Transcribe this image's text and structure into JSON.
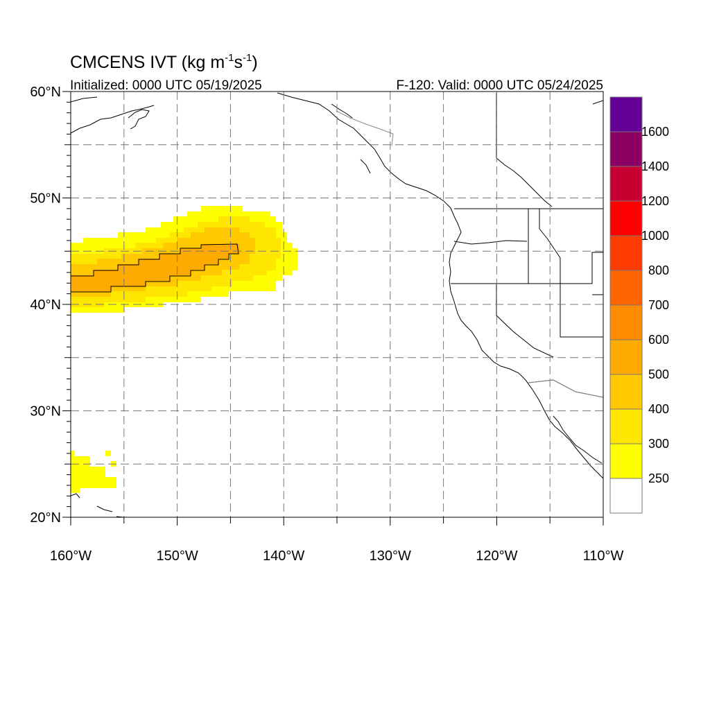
{
  "title": {
    "prefix": "CMCENS IVT (kg m",
    "exp1": "-1",
    "mid": "s",
    "exp2": "-1",
    "suffix": ")"
  },
  "subtitle_left": "Initialized: 0000 UTC 05/19/2025",
  "subtitle_right": "F-120: Valid: 0000 UTC 05/24/2025",
  "lat_labels": [
    {
      "value": 60,
      "text": "60°N"
    },
    {
      "value": 50,
      "text": "50°N"
    },
    {
      "value": 40,
      "text": "40°N"
    },
    {
      "value": 30,
      "text": "30°N"
    },
    {
      "value": 20,
      "text": "20°N"
    }
  ],
  "lon_labels": [
    {
      "value": -160,
      "text": "160°W"
    },
    {
      "value": -150,
      "text": "150°W"
    },
    {
      "value": -140,
      "text": "140°W"
    },
    {
      "value": -130,
      "text": "130°W"
    },
    {
      "value": -120,
      "text": "120°W"
    },
    {
      "value": -110,
      "text": "110°W"
    }
  ],
  "map_extent": {
    "lon": [
      -160,
      -110
    ],
    "lat": [
      20,
      60
    ]
  },
  "gridline_interval_deg": 5,
  "colorbar": {
    "levels": [
      {
        "color": "#ffffff"
      },
      {
        "color": "#ffff00",
        "label": "250"
      },
      {
        "color": "#ffe600",
        "label": "300"
      },
      {
        "color": "#ffc800",
        "label": "400"
      },
      {
        "color": "#ffaa00",
        "label": "500"
      },
      {
        "color": "#ff8c00",
        "label": "600"
      },
      {
        "color": "#ff6400",
        "label": "700"
      },
      {
        "color": "#ff3c00",
        "label": "800"
      },
      {
        "color": "#ff0000",
        "label": "1000"
      },
      {
        "color": "#c80032",
        "label": "1200"
      },
      {
        "color": "#8c0064",
        "label": "1400"
      },
      {
        "color": "#640096",
        "label": "1600"
      }
    ]
  }
}
